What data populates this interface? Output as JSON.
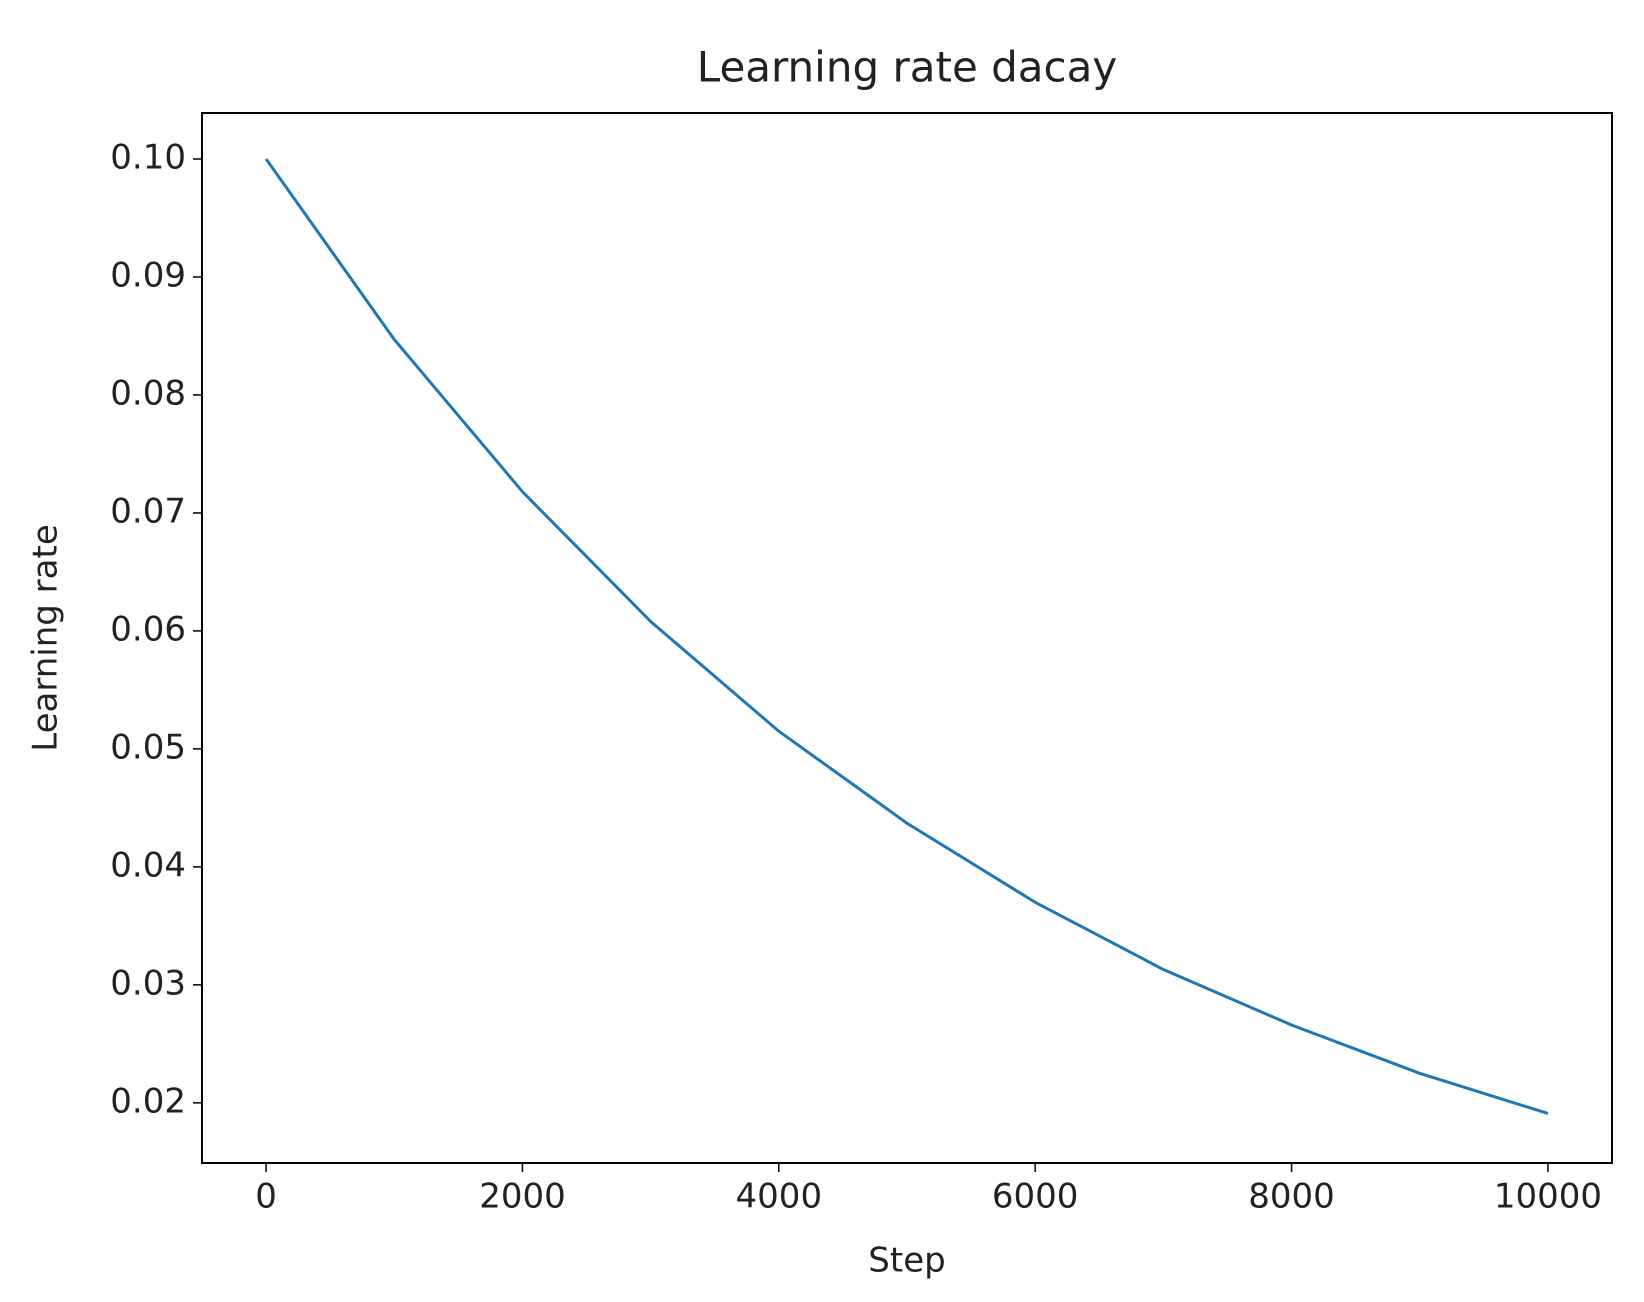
{
  "chart_data": {
    "type": "line",
    "title": "Learning rate dacay",
    "x_label": "Step",
    "y_label": "Learning rate",
    "x": [
      0,
      1000,
      2000,
      3000,
      4000,
      5000,
      6000,
      7000,
      8000,
      9000,
      10000
    ],
    "series": [
      {
        "color": "#1f77b4",
        "values": [
          0.1,
          0.0847,
          0.0718,
          0.0608,
          0.0515,
          0.0437,
          0.037,
          0.0313,
          0.0266,
          0.0225,
          0.0191
        ]
      }
    ],
    "xlim": [
      -500,
      10500
    ],
    "xticks": [
      0,
      2000,
      4000,
      6000,
      8000,
      10000
    ],
    "ylim": [
      0.0149,
      0.1039
    ],
    "yticks": [
      {
        "value": 0.02,
        "label": "0.02"
      },
      {
        "value": 0.03,
        "label": "0.03"
      },
      {
        "value": 0.04,
        "label": "0.04"
      },
      {
        "value": 0.05,
        "label": "0.05"
      },
      {
        "value": 0.06,
        "label": "0.06"
      },
      {
        "value": 0.07,
        "label": "0.07"
      },
      {
        "value": 0.08,
        "label": "0.08"
      },
      {
        "value": 0.09,
        "label": "0.09"
      },
      {
        "value": 0.1,
        "label": "0.10"
      }
    ],
    "grid": false
  }
}
